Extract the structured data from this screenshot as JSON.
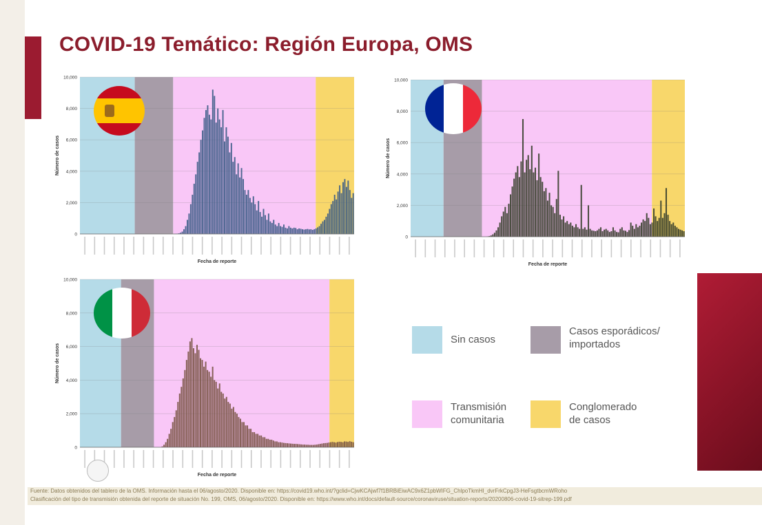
{
  "title": "COVID-19 Temático: Región Europa, OMS",
  "charts": [
    {
      "id": "spain",
      "country_flag": "spain-flag",
      "ylabel": "Número de casos",
      "xlabel": "Fecha de reporte",
      "yticks": [
        "0",
        "2,000",
        "4,000",
        "6,000",
        "8,000",
        "10,000"
      ],
      "phases": [
        {
          "phase": "Sin casos",
          "start": 0.0,
          "end": 0.2
        },
        {
          "phase": "Casos esporádicos/ importados",
          "start": 0.2,
          "end": 0.34
        },
        {
          "phase": "Transmisión comunitaria",
          "start": 0.34,
          "end": 0.86
        },
        {
          "phase": "Conglomerado de casos",
          "start": 0.86,
          "end": 1.0
        }
      ],
      "bar_color": "#3b5c86"
    },
    {
      "id": "france",
      "country_flag": "france-flag",
      "ylabel": "Número de casos",
      "xlabel": "Fecha de reporte",
      "yticks": [
        "0",
        "2,000",
        "4,000",
        "6,000",
        "8,000",
        "10,000"
      ],
      "phases": [
        {
          "phase": "Sin casos",
          "start": 0.0,
          "end": 0.12
        },
        {
          "phase": "Casos esporádicos/ importados",
          "start": 0.12,
          "end": 0.26
        },
        {
          "phase": "Transmisión comunitaria",
          "start": 0.26,
          "end": 0.88
        },
        {
          "phase": "Conglomerado de casos",
          "start": 0.88,
          "end": 1.0
        }
      ],
      "bar_color": "#39402e"
    },
    {
      "id": "italy",
      "country_flag": "italy-flag",
      "ylabel": "Número de casos",
      "xlabel": "Fecha de reporte",
      "yticks": [
        "0",
        "2,000",
        "4,000",
        "6,000",
        "8,000",
        "10,000"
      ],
      "phases": [
        {
          "phase": "Sin casos",
          "start": 0.0,
          "end": 0.15
        },
        {
          "phase": "Casos esporádicos/ importados",
          "start": 0.15,
          "end": 0.27
        },
        {
          "phase": "Transmisión comunitaria",
          "start": 0.27,
          "end": 0.91
        },
        {
          "phase": "Conglomerado de casos",
          "start": 0.91,
          "end": 1.0
        }
      ],
      "bar_color": "#7a5546"
    }
  ],
  "chart_data": [
    {
      "type": "bar",
      "ylim": [
        0,
        10000
      ],
      "n_days": 160,
      "values": [
        0,
        0,
        0,
        0,
        0,
        0,
        0,
        0,
        0,
        0,
        0,
        0,
        0,
        0,
        0,
        0,
        0,
        0,
        0,
        0,
        0,
        0,
        0,
        0,
        0,
        0,
        0,
        0,
        0,
        0,
        0,
        0,
        0,
        0,
        0,
        0,
        0,
        0,
        0,
        0,
        0,
        0,
        0,
        0,
        0,
        0,
        0,
        0,
        0,
        0,
        0,
        0,
        0,
        0,
        0,
        0,
        10,
        20,
        40,
        80,
        150,
        300,
        500,
        900,
        1300,
        1900,
        2500,
        3200,
        3800,
        4600,
        5200,
        6000,
        6600,
        7400,
        7900,
        8200,
        7600,
        7300,
        9200,
        8800,
        7100,
        8000,
        7300,
        6800,
        7900,
        5900,
        6800,
        6200,
        5200,
        5800,
        4600,
        4900,
        3800,
        4500,
        3600,
        4200,
        3500,
        2800,
        2500,
        2800,
        2300,
        2000,
        2400,
        1900,
        1500,
        2100,
        1400,
        1100,
        1600,
        1200,
        900,
        1300,
        800,
        700,
        900,
        600,
        500,
        700,
        500,
        450,
        600,
        400,
        350,
        500,
        400,
        350,
        400,
        380,
        300,
        350,
        330,
        300,
        280,
        300,
        320,
        290,
        300,
        260,
        300,
        350,
        420,
        500,
        650,
        800,
        900,
        1100,
        1300,
        1600,
        1900,
        2100,
        2500,
        2200,
        2700,
        3100,
        2600,
        3300,
        3500,
        3000,
        3400,
        2800,
        2300,
        2600
      ]
    },
    {
      "type": "bar",
      "ylim": [
        0,
        10000
      ],
      "n_days": 160,
      "values": [
        0,
        0,
        0,
        0,
        0,
        0,
        0,
        0,
        0,
        0,
        0,
        0,
        0,
        0,
        0,
        0,
        0,
        0,
        0,
        0,
        0,
        0,
        0,
        0,
        0,
        0,
        0,
        0,
        0,
        0,
        0,
        0,
        0,
        0,
        0,
        0,
        0,
        0,
        0,
        0,
        0,
        0,
        0,
        20,
        40,
        80,
        150,
        250,
        400,
        600,
        900,
        1300,
        1600,
        1900,
        1500,
        2100,
        2700,
        3200,
        3700,
        4100,
        4500,
        3800,
        4800,
        7500,
        4100,
        4900,
        5200,
        4300,
        5800,
        4100,
        4400,
        3600,
        5300,
        3800,
        3500,
        2900,
        3100,
        2300,
        2800,
        2000,
        1900,
        1500,
        2400,
        4200,
        1400,
        1100,
        1300,
        900,
        1000,
        800,
        900,
        700,
        600,
        800,
        600,
        500,
        3300,
        500,
        600,
        450,
        2000,
        500,
        400,
        380,
        350,
        400,
        500,
        600,
        350,
        450,
        500,
        400,
        300,
        350,
        600,
        400,
        300,
        280,
        500,
        600,
        400,
        380,
        300,
        420,
        900,
        700,
        500,
        800,
        600,
        700,
        900,
        1100,
        1000,
        1500,
        1200,
        800,
        900,
        1800,
        1300,
        1000,
        1200,
        2300,
        1200,
        1500,
        3100,
        1400,
        1000,
        800,
        900,
        700,
        600,
        500,
        450,
        400,
        350
      ]
    },
    {
      "type": "bar",
      "ylim": [
        0,
        10000
      ],
      "n_days": 160,
      "values": [
        0,
        0,
        0,
        0,
        0,
        0,
        0,
        0,
        0,
        0,
        0,
        0,
        0,
        0,
        0,
        0,
        0,
        0,
        0,
        0,
        0,
        0,
        0,
        0,
        0,
        0,
        0,
        0,
        0,
        0,
        0,
        0,
        0,
        0,
        0,
        0,
        0,
        0,
        0,
        0,
        0,
        0,
        0,
        0,
        0,
        0,
        0,
        50,
        150,
        300,
        500,
        800,
        1100,
        1500,
        1800,
        2200,
        2700,
        3200,
        3600,
        4100,
        4600,
        5200,
        5700,
        6300,
        6500,
        5900,
        5600,
        6100,
        5800,
        5300,
        5200,
        4800,
        5100,
        4600,
        4500,
        4200,
        4800,
        4000,
        3900,
        3500,
        3800,
        3300,
        3200,
        2900,
        3000,
        2700,
        2600,
        2300,
        2400,
        2100,
        2000,
        1800,
        1700,
        1500,
        1500,
        1300,
        1300,
        1100,
        1100,
        900,
        900,
        800,
        800,
        700,
        700,
        600,
        600,
        500,
        500,
        450,
        450,
        400,
        350,
        350,
        300,
        300,
        280,
        260,
        250,
        240,
        230,
        220,
        210,
        200,
        200,
        190,
        180,
        170,
        160,
        160,
        150,
        150,
        140,
        140,
        140,
        150,
        160,
        180,
        200,
        220,
        240,
        250,
        260,
        280,
        300,
        320,
        300,
        280,
        310,
        330,
        320,
        300,
        350,
        340,
        320,
        360,
        330,
        300
      ]
    }
  ],
  "legend": [
    {
      "label": "Sin casos",
      "color": "#b5dbe8"
    },
    {
      "label": "Casos esporádicos/\nimportados",
      "color": "#a79ca8"
    },
    {
      "label": "Transmisión\ncomunitaria",
      "color": "#f9c7f7"
    },
    {
      "label": "Conglomerado\nde casos",
      "color": "#f8d76b"
    }
  ],
  "footer": {
    "line1": "Fuente: Datos obtenidos del tablero de la OMS. Información hasta el 06/agosto/2020. Disponible en: https://covid19.who.int/?gclid=CjwKCAjwf7f1BRBiEiwAC9x6Z1pbWIFG_ChlpoTkmHI_dvrFrkCpgJ3-HeFsgtbcmWRoho",
    "line2": "Clasificación del tipo de transmisión obtenida del reporte de situación No. 199, OMS, 06/agosto/2020. Disponible en: https://www.who.int/docs/default-source/coronaviruse/situation-reports/20200806-covid-19-sitrep-199.pdf"
  },
  "phase_colors": {
    "sin_casos": "#b5dbe8",
    "esporadicos": "#a79ca8",
    "comunitaria": "#f9c7f7",
    "conglomerado": "#f8d76b"
  }
}
